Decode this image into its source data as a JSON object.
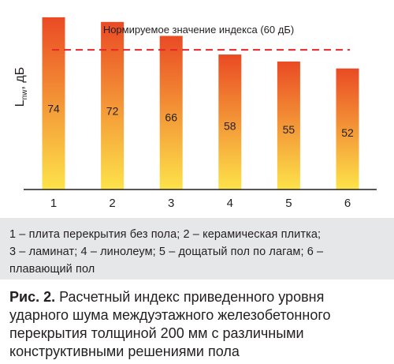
{
  "chart_data": {
    "type": "bar",
    "categories": [
      "1",
      "2",
      "3",
      "4",
      "5",
      "6"
    ],
    "values": [
      74,
      72,
      66,
      58,
      55,
      52
    ],
    "ylabel_main": "L",
    "ylabel_sub": "nw",
    "ylabel_unit": ", дБ",
    "ylim": [
      0,
      76
    ],
    "reference_line": {
      "value": 60,
      "label": "Нормируемое значение индекса (60 дБ)",
      "color": "#e8262a"
    },
    "bar_gradient": {
      "top": "#ea4a24",
      "bottom": "#fde34a"
    },
    "grid": false
  },
  "legend": {
    "line1": "1 – плита перекрытия без пола; 2 – керамическая плитка;",
    "line2": "3 – ламинат; 4 – линолеум; 5 – дощатый пол по лагам; 6 –",
    "line3": "плавающий пол"
  },
  "caption": {
    "label": "Рис. 2.",
    "text": " Расчетный индекс приведенного уровня ударного шума междуэтажного железобетонного перекрытия толщиной 200 мм с различными конструктивными решениями пола"
  }
}
